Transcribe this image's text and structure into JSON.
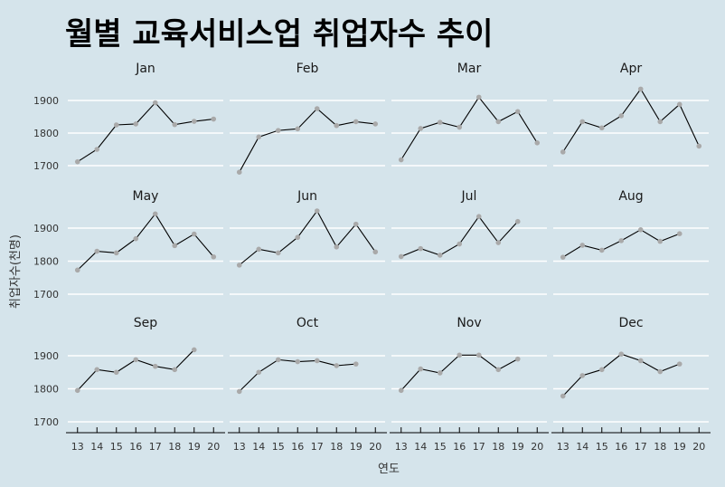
{
  "title": "월별 교육서비스업 취업자수 추이",
  "ylabel": "취업자수(천명)",
  "xlabel": "연도",
  "colors": {
    "background": "#d5e4eb",
    "gridline": "#ffffff",
    "line": "#000000",
    "point": "#a9a9a9"
  },
  "chart_data": {
    "type": "line",
    "facet_layout": "3 rows x 4 columns",
    "x_ticks": [
      13,
      14,
      15,
      16,
      17,
      18,
      19,
      20
    ],
    "y_ticks": [
      1700,
      1800,
      1900
    ],
    "xlim": [
      12.5,
      20.5
    ],
    "ylim": [
      1675,
      1950
    ],
    "grid": true,
    "panels": [
      {
        "name": "Jan",
        "x": [
          13,
          14,
          15,
          16,
          17,
          18,
          19,
          20
        ],
        "values": [
          1712,
          1750,
          1825,
          1828,
          1893,
          1826,
          1836,
          1843
        ]
      },
      {
        "name": "Feb",
        "x": [
          13,
          14,
          15,
          16,
          17,
          18,
          19,
          20
        ],
        "values": [
          1680,
          1788,
          1808,
          1813,
          1875,
          1823,
          1835,
          1828
        ]
      },
      {
        "name": "Mar",
        "x": [
          13,
          14,
          15,
          16,
          17,
          18,
          19,
          20
        ],
        "values": [
          1718,
          1814,
          1833,
          1818,
          1910,
          1835,
          1866,
          1770
        ]
      },
      {
        "name": "Apr",
        "x": [
          13,
          14,
          15,
          16,
          17,
          18,
          19,
          20
        ],
        "values": [
          1742,
          1835,
          1816,
          1853,
          1935,
          1835,
          1888,
          1760
        ]
      },
      {
        "name": "May",
        "x": [
          13,
          14,
          15,
          16,
          17,
          18,
          19,
          20
        ],
        "values": [
          1773,
          1830,
          1825,
          1868,
          1943,
          1847,
          1882,
          1813
        ]
      },
      {
        "name": "Jun",
        "x": [
          13,
          14,
          15,
          16,
          17,
          18,
          19,
          20
        ],
        "values": [
          1788,
          1836,
          1825,
          1872,
          1952,
          1843,
          1912,
          1828
        ]
      },
      {
        "name": "Jul",
        "x": [
          13,
          14,
          15,
          16,
          17,
          18,
          19
        ],
        "values": [
          1814,
          1838,
          1818,
          1852,
          1935,
          1856,
          1920
        ]
      },
      {
        "name": "Aug",
        "x": [
          13,
          14,
          15,
          16,
          17,
          18,
          19
        ],
        "values": [
          1812,
          1848,
          1833,
          1862,
          1895,
          1860,
          1883
        ]
      },
      {
        "name": "Sep",
        "x": [
          13,
          14,
          15,
          16,
          17,
          18,
          19
        ],
        "values": [
          1795,
          1858,
          1850,
          1888,
          1868,
          1858,
          1918
        ]
      },
      {
        "name": "Oct",
        "x": [
          13,
          14,
          15,
          16,
          17,
          18,
          19
        ],
        "values": [
          1792,
          1850,
          1888,
          1882,
          1885,
          1870,
          1875
        ]
      },
      {
        "name": "Nov",
        "x": [
          13,
          14,
          15,
          16,
          17,
          18,
          19
        ],
        "values": [
          1795,
          1860,
          1848,
          1902,
          1902,
          1858,
          1890
        ]
      },
      {
        "name": "Dec",
        "x": [
          13,
          14,
          15,
          16,
          17,
          18,
          19
        ],
        "values": [
          1778,
          1840,
          1858,
          1905,
          1885,
          1852,
          1875
        ]
      }
    ]
  }
}
